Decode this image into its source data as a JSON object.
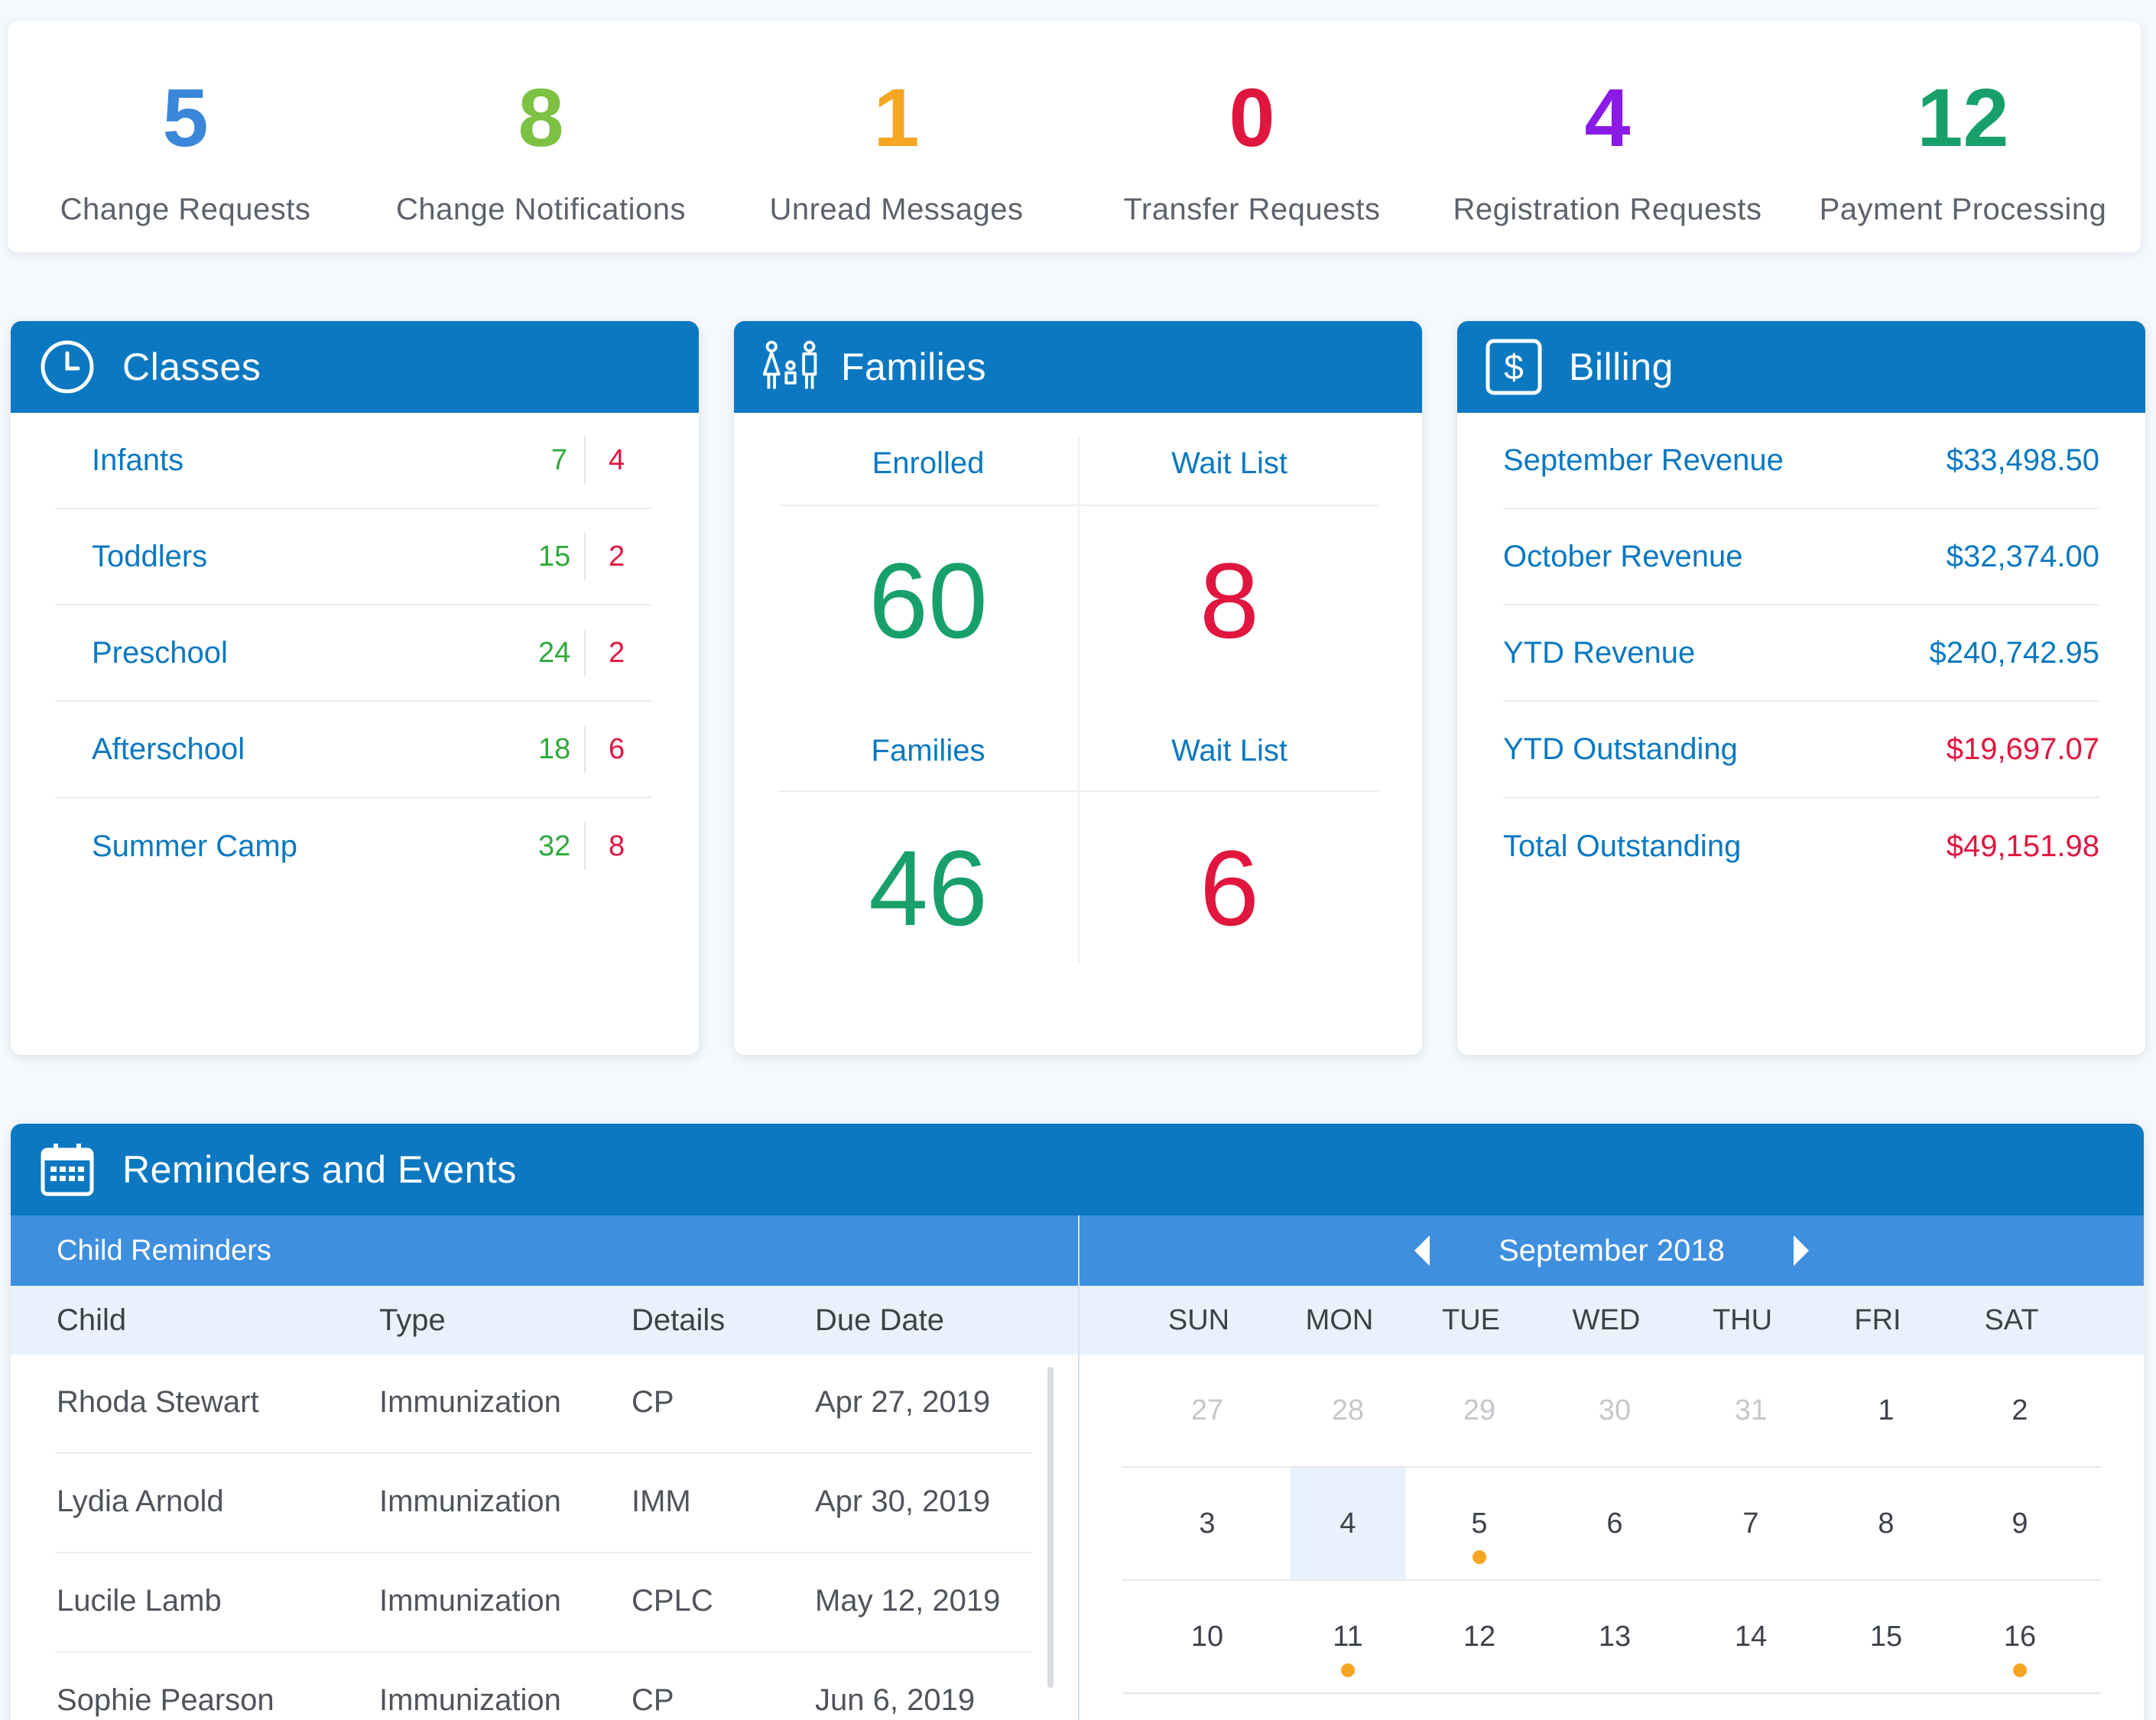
{
  "stats": [
    {
      "value": "5",
      "label": "Change Requests",
      "color": "#3a86d9"
    },
    {
      "value": "8",
      "label": "Change Notifications",
      "color": "#7cc142"
    },
    {
      "value": "1",
      "label": "Unread Messages",
      "color": "#f5a623"
    },
    {
      "value": "0",
      "label": "Transfer Requests",
      "color": "#e0163f"
    },
    {
      "value": "4",
      "label": "Registration Requests",
      "color": "#8a1be6"
    },
    {
      "value": "12",
      "label": "Payment Processing",
      "color": "#18a06b"
    }
  ],
  "classes": {
    "title": "Classes",
    "icon": "clock-icon",
    "rows": [
      {
        "name": "Infants",
        "a": "7",
        "b": "4"
      },
      {
        "name": "Toddlers",
        "a": "15",
        "b": "2"
      },
      {
        "name": "Preschool",
        "a": "24",
        "b": "2"
      },
      {
        "name": "Afterschool",
        "a": "18",
        "b": "6"
      },
      {
        "name": "Summer Camp",
        "a": "32",
        "b": "8"
      }
    ]
  },
  "families": {
    "title": "Families",
    "icon": "family-icon",
    "enrolled_label": "Enrolled",
    "enrolled_value": "60",
    "waitlist1_label": "Wait List",
    "waitlist1_value": "8",
    "families_label": "Families",
    "families_value": "46",
    "waitlist2_label": "Wait List",
    "waitlist2_value": "6"
  },
  "billing": {
    "title": "Billing",
    "icon": "dollar-icon",
    "rows": [
      {
        "label": "September Revenue",
        "value": "$33,498.50",
        "color": "#0b78c1"
      },
      {
        "label": "October Revenue",
        "value": "$32,374.00",
        "color": "#0b78c1"
      },
      {
        "label": "YTD Revenue",
        "value": "$240,742.95",
        "color": "#0b78c1"
      },
      {
        "label": "YTD Outstanding",
        "value": "$19,697.07",
        "color": "#e0163f"
      },
      {
        "label": "Total Outstanding",
        "value": "$49,151.98",
        "color": "#e0163f"
      }
    ]
  },
  "reminders": {
    "title": "Reminders and Events",
    "icon": "calendar-icon",
    "subtitle": "Child Reminders",
    "columns": {
      "child": "Child",
      "type": "Type",
      "details": "Details",
      "due": "Due Date"
    },
    "rows": [
      {
        "child": "Rhoda Stewart",
        "type": "Immunization",
        "details": "CP",
        "due": "Apr 27, 2019"
      },
      {
        "child": "Lydia Arnold",
        "type": "Immunization",
        "details": "IMM",
        "due": "Apr 30, 2019"
      },
      {
        "child": "Lucile Lamb",
        "type": "Immunization",
        "details": "CPLC",
        "due": "May 12, 2019"
      },
      {
        "child": "Sophie Pearson",
        "type": "Immunization",
        "details": "CP",
        "due": "Jun 6, 2019"
      }
    ]
  },
  "calendar": {
    "month": "September 2018",
    "days": [
      "SUN",
      "MON",
      "TUE",
      "WED",
      "THU",
      "FRI",
      "SAT"
    ],
    "weeks": [
      [
        {
          "d": "27",
          "muted": true
        },
        {
          "d": "28",
          "muted": true
        },
        {
          "d": "29",
          "muted": true
        },
        {
          "d": "30",
          "muted": true
        },
        {
          "d": "31",
          "muted": true
        },
        {
          "d": "1"
        },
        {
          "d": "2"
        }
      ],
      [
        {
          "d": "3"
        },
        {
          "d": "4",
          "today": true
        },
        {
          "d": "5",
          "dot": true
        },
        {
          "d": "6"
        },
        {
          "d": "7"
        },
        {
          "d": "8"
        },
        {
          "d": "9"
        }
      ],
      [
        {
          "d": "10"
        },
        {
          "d": "11",
          "dot": true
        },
        {
          "d": "12"
        },
        {
          "d": "13"
        },
        {
          "d": "14"
        },
        {
          "d": "15"
        },
        {
          "d": "16",
          "dot": true
        }
      ]
    ],
    "dot_color": "#f5a623"
  },
  "colors": {
    "header": "#0b78c1",
    "subheader": "#3f8fdf",
    "green": "#18a06b",
    "red": "#e0163f"
  }
}
